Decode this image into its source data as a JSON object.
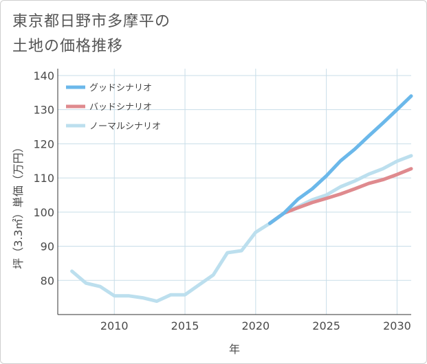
{
  "title": "東京都日野市多摩平の\n土地の価格推移",
  "colors": {
    "good": "#6bb8ea",
    "bad": "#df8a8e",
    "normal": "#bcdfee",
    "grid": "#c8dde8",
    "axis": "#333333"
  },
  "chart_data": {
    "type": "line",
    "xlabel": "年",
    "ylabel": "坪（3.3㎡）単価（万円）",
    "xlim": [
      2006,
      2031
    ],
    "ylim": [
      70,
      142
    ],
    "xticks": [
      2010,
      2015,
      2020,
      2025,
      2030
    ],
    "yticks": [
      80,
      90,
      100,
      110,
      120,
      130,
      140
    ],
    "grid": true,
    "legend_position": "top-left",
    "series": [
      {
        "name": "グッドシナリオ",
        "color_key": "good",
        "points": [
          [
            2021,
            96.7
          ],
          [
            2022,
            99.7
          ],
          [
            2023,
            103.8
          ],
          [
            2024,
            106.8
          ],
          [
            2025,
            110.6
          ],
          [
            2026,
            115.0
          ],
          [
            2027,
            118.4
          ],
          [
            2028,
            122.3
          ],
          [
            2029,
            126.1
          ],
          [
            2030,
            130.0
          ],
          [
            2031,
            134.0
          ]
        ]
      },
      {
        "name": "バッドシナリオ",
        "color_key": "bad",
        "points": [
          [
            2021,
            96.7
          ],
          [
            2022,
            99.7
          ],
          [
            2023,
            101.3
          ],
          [
            2024,
            102.8
          ],
          [
            2025,
            104.0
          ],
          [
            2026,
            105.3
          ],
          [
            2027,
            106.8
          ],
          [
            2028,
            108.4
          ],
          [
            2029,
            109.5
          ],
          [
            2030,
            111.0
          ],
          [
            2031,
            112.7
          ]
        ]
      },
      {
        "name": "ノーマルシナリオ",
        "color_key": "normal",
        "points": [
          [
            2007,
            82.7
          ],
          [
            2008,
            79.2
          ],
          [
            2009,
            78.2
          ],
          [
            2010,
            75.5
          ],
          [
            2011,
            75.5
          ],
          [
            2012,
            74.9
          ],
          [
            2013,
            73.9
          ],
          [
            2014,
            75.8
          ],
          [
            2015,
            75.8
          ],
          [
            2016,
            78.7
          ],
          [
            2017,
            81.6
          ],
          [
            2018,
            88.1
          ],
          [
            2019,
            88.7
          ],
          [
            2020,
            94.1
          ],
          [
            2021,
            96.7
          ],
          [
            2022,
            99.7
          ],
          [
            2023,
            101.6
          ],
          [
            2024,
            103.6
          ],
          [
            2025,
            105.0
          ],
          [
            2026,
            107.4
          ],
          [
            2027,
            109.1
          ],
          [
            2028,
            111.1
          ],
          [
            2029,
            112.7
          ],
          [
            2030,
            114.9
          ],
          [
            2031,
            116.5
          ]
        ]
      }
    ]
  }
}
